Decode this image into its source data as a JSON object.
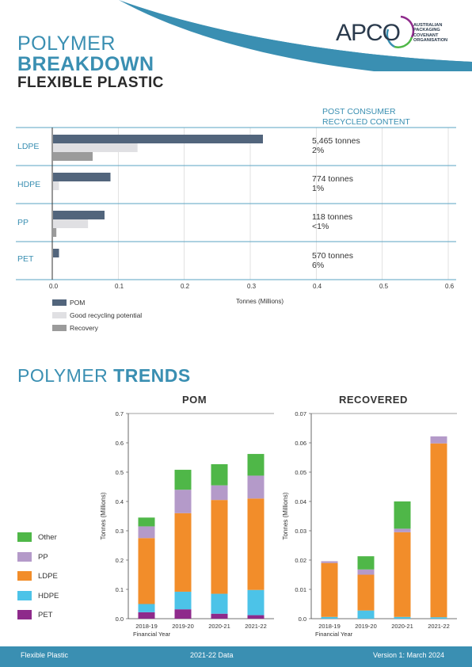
{
  "header": {
    "title_line1": "POLYMER",
    "title_line2": "BREAKDOWN",
    "subtitle": "FLEXIBLE PLASTIC",
    "logo_text": "APCO",
    "logo_subtext": "AUSTRALIAN PACKAGING COVENANT ORGANISATION",
    "colors": {
      "accent": "#3a8fb2",
      "wave": "#3a8fb2"
    }
  },
  "pcr": {
    "heading_line1": "POST CONSUMER",
    "heading_line2": "RECYCLED CONTENT",
    "rows": [
      {
        "tonnes": "5,465 tonnes",
        "pct": "2%"
      },
      {
        "tonnes": "774 tonnes",
        "pct": "1%"
      },
      {
        "tonnes": "118 tonnes",
        "pct": "<1%"
      },
      {
        "tonnes": "570 tonnes",
        "pct": "6%"
      }
    ]
  },
  "legend_breakdown": [
    "POM",
    "Good recycling potential",
    "Recovery"
  ],
  "trends_heading": {
    "normal": "POLYMER ",
    "bold": "TRENDS"
  },
  "trend_legend": [
    "Other",
    "PP",
    "LDPE",
    "HDPE",
    "PET"
  ],
  "footer": {
    "left": "Flexible Plastic",
    "center": "2021-22 Data",
    "right": "Version 1: March 2024"
  },
  "chart_data": [
    {
      "type": "bar",
      "orientation": "horizontal",
      "categories": [
        "LDPE",
        "HDPE",
        "PP",
        "PET"
      ],
      "series": [
        {
          "name": "POM",
          "values": [
            0.318,
            0.087,
            0.078,
            0.009
          ],
          "color": "#52657c"
        },
        {
          "name": "Good recycling potential",
          "values": [
            0.128,
            0.009,
            0.053,
            0.0
          ],
          "color": "#e0e0e3"
        },
        {
          "name": "Recovery",
          "values": [
            0.06,
            0.0,
            0.005,
            0.0
          ],
          "color": "#9b9b9b"
        }
      ],
      "xlabel": "Tonnes (Millions)",
      "xlim": [
        0,
        0.6
      ],
      "xticks": [
        "0.0",
        "0.1",
        "0.2",
        "0.3",
        "0.4",
        "0.5",
        "0.6"
      ],
      "grid": true
    },
    {
      "type": "bar",
      "stacked": true,
      "title": "POM",
      "categories": [
        "2018-19",
        "2019-20",
        "2020-21",
        "2021-22"
      ],
      "series": [
        {
          "name": "PET",
          "values": [
            0.022,
            0.032,
            0.017,
            0.012
          ],
          "color": "#8e2a8b"
        },
        {
          "name": "HDPE",
          "values": [
            0.028,
            0.06,
            0.068,
            0.086
          ],
          "color": "#4cc3e8"
        },
        {
          "name": "LDPE",
          "values": [
            0.225,
            0.268,
            0.32,
            0.312
          ],
          "color": "#f28d2a"
        },
        {
          "name": "PP",
          "values": [
            0.04,
            0.08,
            0.05,
            0.078
          ],
          "color": "#b49ac9"
        },
        {
          "name": "Other",
          "values": [
            0.03,
            0.068,
            0.072,
            0.074
          ],
          "color": "#4fb748"
        }
      ],
      "xlabel": "Financial Year",
      "ylabel": "Tonnes (Millions)",
      "ylim": [
        0,
        0.7
      ],
      "yticks": [
        "0.0",
        "0.1",
        "0.2",
        "0.3",
        "0.4",
        "0.5",
        "0.6",
        "0.7"
      ]
    },
    {
      "type": "bar",
      "stacked": true,
      "title": "RECOVERED",
      "categories": [
        "2018-19",
        "2019-20",
        "2020-21",
        "2021-22"
      ],
      "series": [
        {
          "name": "PET",
          "values": [
            0.0,
            0.0,
            0.0,
            0.0
          ],
          "color": "#8e2a8b"
        },
        {
          "name": "HDPE",
          "values": [
            0.0006,
            0.0028,
            0.0006,
            0.0005
          ],
          "color": "#4cc3e8"
        },
        {
          "name": "LDPE",
          "values": [
            0.0184,
            0.0122,
            0.0289,
            0.0593
          ],
          "color": "#f28d2a"
        },
        {
          "name": "PP",
          "values": [
            0.0006,
            0.0018,
            0.0012,
            0.0024
          ],
          "color": "#b49ac9"
        },
        {
          "name": "Other",
          "values": [
            0.0,
            0.0045,
            0.0093,
            0.0
          ],
          "color": "#4fb748"
        }
      ],
      "xlabel": "Financial Year",
      "ylabel": "Tonnes (Millions)",
      "ylim": [
        0,
        0.07
      ],
      "yticks": [
        "0.0",
        "0.01",
        "0.02",
        "0.03",
        "0.04",
        "0.05",
        "0.06",
        "0.07"
      ]
    }
  ]
}
